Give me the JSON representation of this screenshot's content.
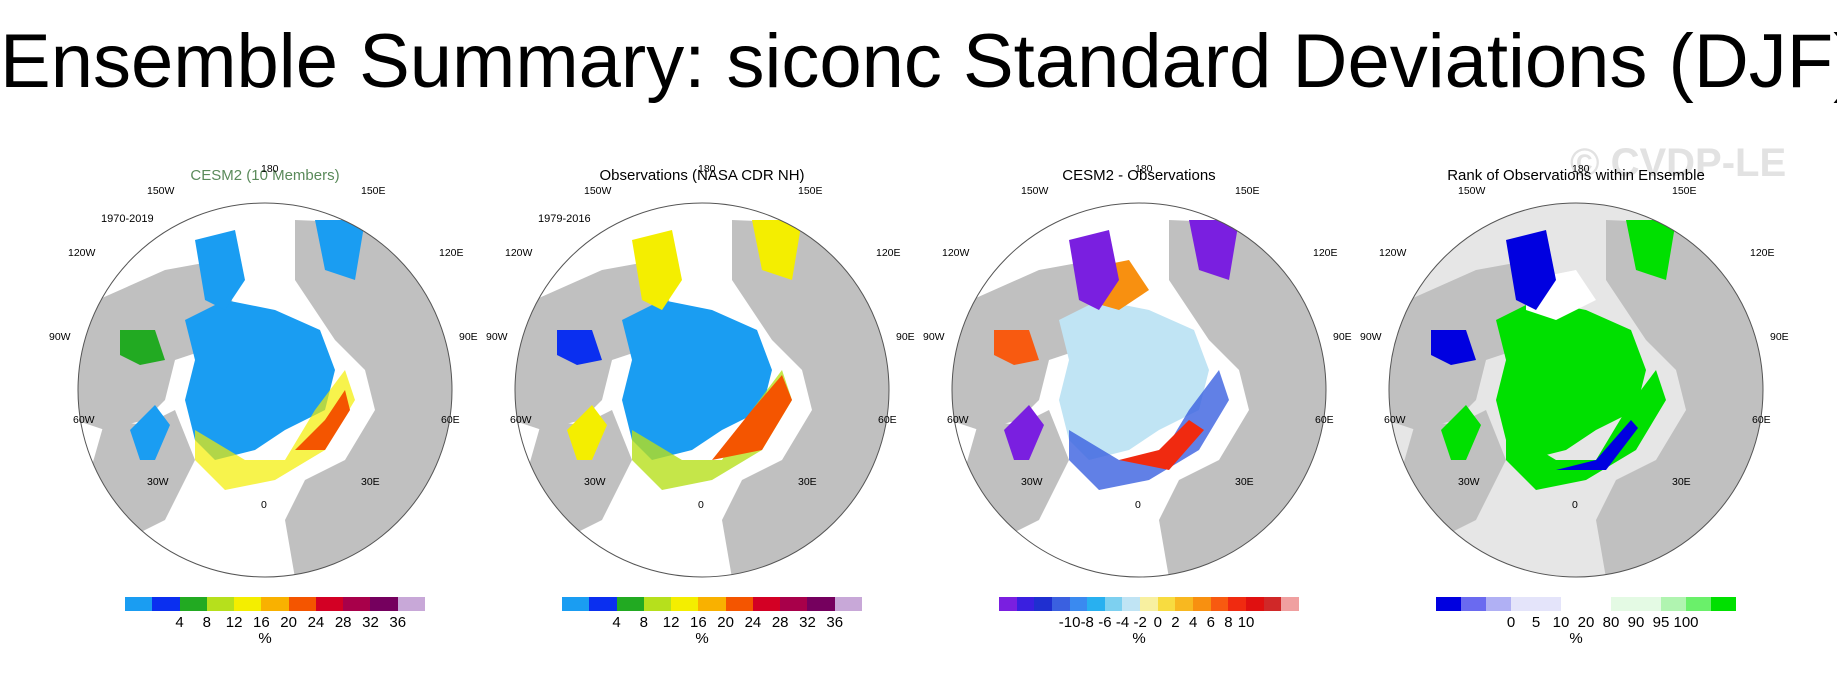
{
  "title": "Ensemble Summary: siconc Standard Deviations (DJF)",
  "watermark": "© CVDP-LE",
  "colors": {
    "land": "#c0c0c0",
    "ocean": "#ffffff",
    "rank_background": "#e6e6e6"
  },
  "longitude_labels": {
    "top": "180",
    "upper_left": "150W",
    "upper_right": "150E",
    "mid_upper_left": "120W",
    "mid_upper_right": "120E",
    "left": "90W",
    "right": "90E",
    "mid_lower_left": "60W",
    "mid_lower_right": "60E",
    "lower_left": "30W",
    "lower_right": "30E",
    "bottom": "0"
  },
  "panels": [
    {
      "title": "CESM2 (10 Members)",
      "period": "1970-2019",
      "unit": "%",
      "colorbar": {
        "colors": [
          "#1a9df2",
          "#0a2ff0",
          "#22aa22",
          "#b6e01c",
          "#f4ee00",
          "#f9b100",
          "#f45500",
          "#d30024",
          "#a8004a",
          "#75005e",
          "#c8a8d8"
        ],
        "tick_labels": [
          "4",
          "8",
          "12",
          "16",
          "20",
          "24",
          "28",
          "32",
          "36"
        ]
      }
    },
    {
      "title": "Observations (NASA CDR NH)",
      "period": "1979-2016",
      "unit": "%",
      "colorbar": {
        "colors": [
          "#1a9df2",
          "#0a2ff0",
          "#22aa22",
          "#b6e01c",
          "#f4ee00",
          "#f9b100",
          "#f45500",
          "#d30024",
          "#a8004a",
          "#75005e",
          "#c8a8d8"
        ],
        "tick_labels": [
          "4",
          "8",
          "12",
          "16",
          "20",
          "24",
          "28",
          "32",
          "36"
        ]
      }
    },
    {
      "title": "CESM2 - Observations",
      "period": "",
      "unit": "%",
      "colorbar": {
        "colors": [
          "#7a1fe0",
          "#3a1fe0",
          "#1f2fd0",
          "#3a60e0",
          "#3a8af0",
          "#28b0f0",
          "#7dd0f0",
          "#c0e4f4",
          "#f8f0a0",
          "#f8dc40",
          "#f8b820",
          "#f89010",
          "#f85a10",
          "#f02a10",
          "#e01010",
          "#d02828",
          "#f0a0a0"
        ],
        "tick_labels": [
          "-10",
          "-8",
          "-6",
          "-4",
          "-2",
          "0",
          "2",
          "4",
          "6",
          "8",
          "10"
        ]
      }
    },
    {
      "title": "Rank of Observations within Ensemble",
      "period": "",
      "unit": "%",
      "colorbar": {
        "colors": [
          "#0000e0",
          "#6a6af0",
          "#b0b0f4",
          "#e4e4fa",
          "#e4e4fa",
          "#ffffff",
          "#ffffff",
          "#e4fae4",
          "#e4fae4",
          "#b0f4b0",
          "#6af06a",
          "#00e000"
        ],
        "tick_labels": [
          "0",
          "5",
          "10",
          "20",
          "80",
          "90",
          "95",
          "100"
        ]
      }
    }
  ]
}
